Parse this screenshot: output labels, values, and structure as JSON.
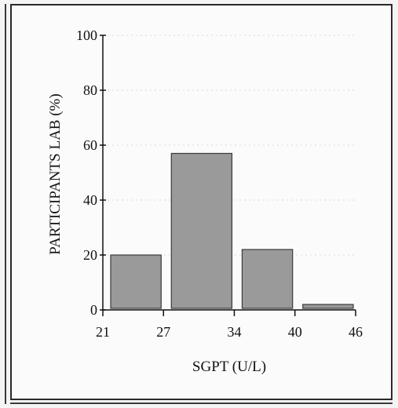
{
  "chart_data": {
    "type": "bar",
    "bins": [
      {
        "start": 21,
        "end": 27,
        "value": 20
      },
      {
        "start": 27,
        "end": 34,
        "value": 57
      },
      {
        "start": 34,
        "end": 40,
        "value": 22
      },
      {
        "start": 40,
        "end": 46,
        "value": 2
      }
    ],
    "x_ticks": [
      21,
      27,
      34,
      40,
      46
    ],
    "y_ticks": [
      0,
      20,
      40,
      60,
      80,
      100
    ],
    "xlabel": "SGPT (U/L)",
    "ylabel": "PARTICIPANTS LAB (%)",
    "ylim": [
      0,
      100
    ],
    "grid": true,
    "colors": {
      "bar_fill": "#9a9a9a",
      "bar_edge": "#3a3a3a",
      "axis": "#111111",
      "grid": "#d8d8d8"
    }
  }
}
